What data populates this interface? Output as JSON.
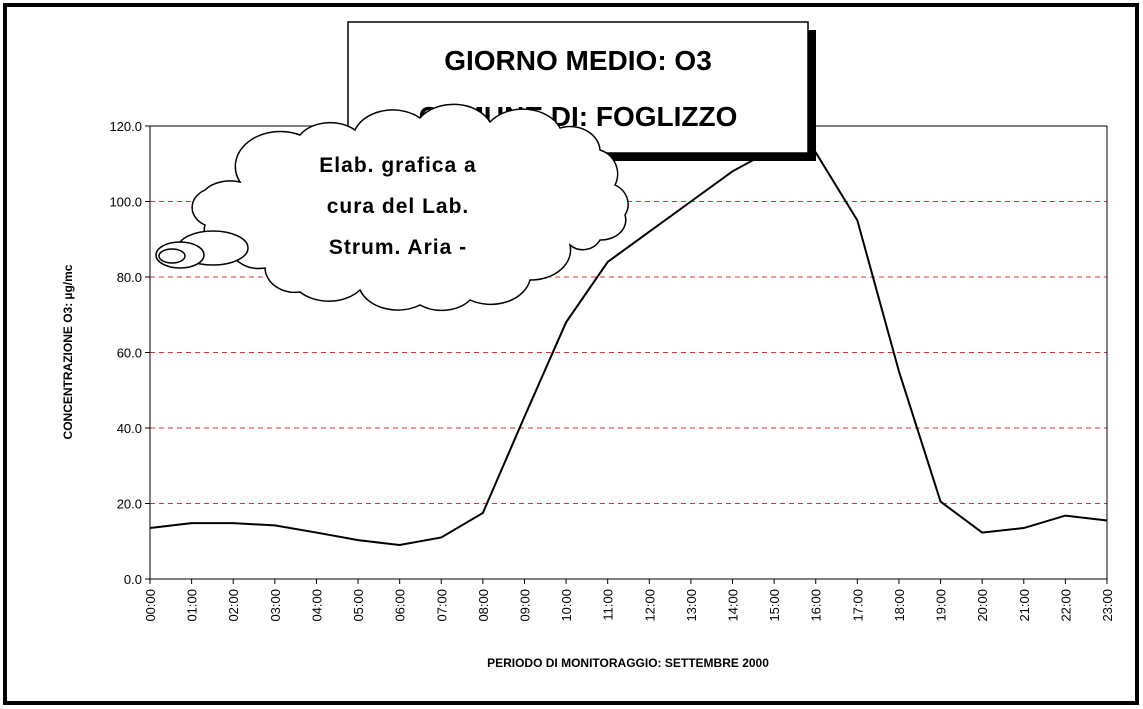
{
  "chart_data": {
    "type": "line",
    "title": [
      "GIORNO MEDIO: O3",
      "COMUNE DI: FOGLIZZO"
    ],
    "annotation": [
      "Elab. grafica a",
      "cura del Lab.",
      "Strum. Aria -"
    ],
    "y_label": "CONCENTRAZIONE O3: µg/mc",
    "x_label": "PERIODO DI MONITORAGGIO: SETTEMBRE 2000",
    "categories": [
      "00:00",
      "01:00",
      "02:00",
      "03:00",
      "04:00",
      "05:00",
      "06:00",
      "07:00",
      "08:00",
      "09:00",
      "10:00",
      "11:00",
      "12:00",
      "13:00",
      "14:00",
      "15:00",
      "16:00",
      "17:00",
      "18:00",
      "19:00",
      "20:00",
      "21:00",
      "22:00",
      "23:00"
    ],
    "values": [
      13.5,
      14.8,
      14.8,
      14.2,
      12.3,
      10.3,
      9.0,
      11.0,
      17.5,
      43,
      68,
      84,
      92,
      100,
      108,
      114,
      113,
      95,
      55,
      20.5,
      12.3,
      13.5,
      16.8,
      15.5
    ],
    "color": "#000000",
    "ylim": [
      0,
      120
    ],
    "yticks": [
      {
        "value": 0,
        "label": "0.0"
      },
      {
        "value": 20,
        "label": "20.0"
      },
      {
        "value": 40,
        "label": "40.0"
      },
      {
        "value": 60,
        "label": "60.0"
      },
      {
        "value": 80,
        "label": "80.0"
      },
      {
        "value": 100,
        "label": "100.0"
      },
      {
        "value": 120,
        "label": "120.0"
      }
    ],
    "grid": true,
    "grid_color": "#e03030"
  }
}
